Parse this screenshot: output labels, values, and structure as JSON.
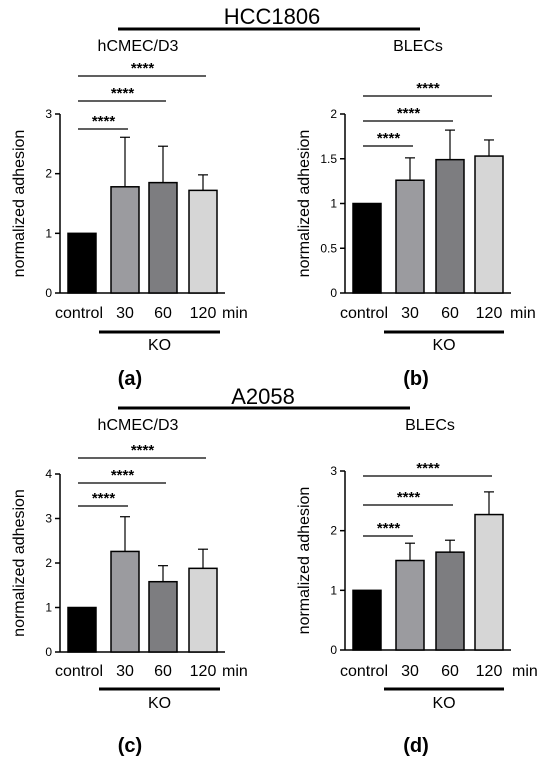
{
  "sections": [
    {
      "title": "HCC1806",
      "panels": [
        {
          "panel_label": "(a)",
          "cell_label": "hCMEC/D3",
          "chart_data": {
            "type": "bar",
            "categories": [
              "control",
              "30",
              "60",
              "120"
            ],
            "values": [
              1.0,
              1.78,
              1.85,
              1.72
            ],
            "errors": [
              0,
              0.83,
              0.61,
              0.26
            ],
            "ylabel": "normalized adhesion",
            "ylim": [
              0,
              3
            ],
            "yticks": [
              "0",
              "1",
              "2",
              "3"
            ],
            "unit": "min",
            "group_label": "KO",
            "significance": [
              "****",
              "****",
              "****"
            ],
            "bar_colors": [
              "#000000",
              "#9b9b9f",
              "#7d7d80",
              "#d6d6d6"
            ]
          }
        },
        {
          "panel_label": "(b)",
          "cell_label": "BLECs",
          "chart_data": {
            "type": "bar",
            "categories": [
              "control",
              "30",
              "60",
              "120"
            ],
            "values": [
              1.0,
              1.26,
              1.49,
              1.53
            ],
            "errors": [
              0,
              0.25,
              0.33,
              0.18
            ],
            "ylabel": "normalized adhesion",
            "ylim": [
              0,
              2
            ],
            "yticks": [
              "0",
              "0.5",
              "1",
              "1.5",
              "2"
            ],
            "unit": "min",
            "group_label": "KO",
            "significance": [
              "****",
              "****",
              "****"
            ],
            "bar_colors": [
              "#000000",
              "#9b9b9f",
              "#7d7d80",
              "#d6d6d6"
            ]
          }
        }
      ]
    },
    {
      "title": "A2058",
      "panels": [
        {
          "panel_label": "(c)",
          "cell_label": "hCMEC/D3",
          "chart_data": {
            "type": "bar",
            "categories": [
              "control",
              "30",
              "60",
              "120"
            ],
            "values": [
              1.0,
              2.26,
              1.58,
              1.88
            ],
            "errors": [
              0,
              0.78,
              0.36,
              0.43
            ],
            "ylabel": "normalized adhesion",
            "ylim": [
              0,
              4
            ],
            "yticks": [
              "0",
              "1",
              "2",
              "3",
              "4"
            ],
            "unit": "min",
            "group_label": "KO",
            "significance": [
              "****",
              "****",
              "****"
            ],
            "bar_colors": [
              "#000000",
              "#9b9b9f",
              "#7d7d80",
              "#d6d6d6"
            ]
          }
        },
        {
          "panel_label": "(d)",
          "cell_label": "BLECs",
          "chart_data": {
            "type": "bar",
            "categories": [
              "control",
              "30",
              "60",
              "120"
            ],
            "values": [
              1.0,
              1.5,
              1.64,
              2.27
            ],
            "errors": [
              0,
              0.29,
              0.2,
              0.38
            ],
            "ylabel": "normalized adhesion",
            "ylim": [
              0,
              3
            ],
            "yticks": [
              "0",
              "1",
              "2",
              "3"
            ],
            "unit": "min",
            "group_label": "KO",
            "significance": [
              "****",
              "****",
              "****"
            ],
            "bar_colors": [
              "#000000",
              "#9b9b9f",
              "#7d7d80",
              "#d6d6d6"
            ]
          }
        }
      ]
    }
  ]
}
